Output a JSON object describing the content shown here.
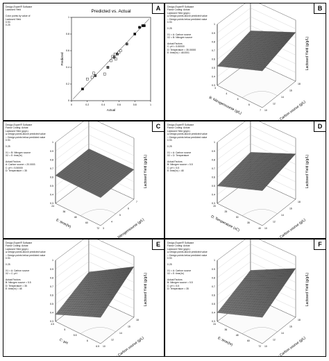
{
  "panels": [
    {
      "letter": "A",
      "info": [
        "Design-Expert® Software",
        "Lactosed Yield",
        "",
        "Color points by value of",
        "Lactosed Yield",
        "0.93",
        "0.25"
      ],
      "ytitle": "Lactosed Yield (g/g/L)"
    },
    {
      "letter": "B",
      "info": [
        "Design-Expert® Software",
        "Factor Coding: Actual",
        "Lactosed Yield (g/g/L)",
        "  ● Design points above predicted value",
        "  ○ Design points below predicted value",
        "0.93",
        "",
        "0.25",
        "",
        "X1 = A: Carbon source",
        "X2 = B: Nitrogen source",
        "",
        "Actual Factors",
        "C: pH = 5.50000",
        "D: Temperature = 35.00000",
        "E: time(hr) = 48.0001"
      ],
      "ytitle": "Lactosed Yield (g/g/L)"
    },
    {
      "letter": "C",
      "info": [
        "Design-Expert® Software",
        "Factor Coding: Actual",
        "Lactosed Yield (g/g/L)",
        "  ● Design points above predicted value",
        "  ○ Design points below predicted value",
        "0.93",
        "",
        "0.25",
        "",
        "X1 = B: Nitrogen source",
        "X2 = E: time(hr)",
        "",
        "Actual Factors",
        "A: Carbon source = 20.0003",
        "C: pH = 5.50000",
        "D: Temperature = 35"
      ],
      "ytitle": "Lactosed Yield (g/g/L)"
    },
    {
      "letter": "D",
      "info": [
        "Design-Expert® Software",
        "Factor Coding: Actual",
        "Lactosed Yield (g/g/L)",
        "  ● Design points above predicted value",
        "  ○ Design points below predicted value",
        "0.93",
        "",
        "0.25",
        "",
        "X1 = A: Carbon source",
        "X2 = D: Temperature",
        "",
        "Actual Factors",
        "B: Nitrogen source = 5.5",
        "C: pH = 5.5",
        "E: time(hr) = 48"
      ],
      "ytitle": "Lactosed Yield (g/g/L)"
    },
    {
      "letter": "E",
      "info": [
        "Design-Expert® Software",
        "Factor Coding: Actual",
        "Lactosed Yield (g/g/L)",
        "  ● Design points above predicted value",
        "  ○ Design points below predicted value",
        "0.93",
        "",
        "0.25",
        "",
        "X1 = A: Carbon source",
        "X2 = C: pH",
        "",
        "Actual Factors",
        "B: Nitrogen source = 5.5",
        "D: Temperature = 35",
        "E: time(hr) = 48"
      ],
      "ytitle": "Lactosed Yield (g/g/L)"
    },
    {
      "letter": "F",
      "info": [
        "Design-Expert® Software",
        "Factor Coding: Actual",
        "Lactosed Yield (g/g/L)",
        "  ● Design points above predicted value",
        "  ○ Design points below predicted value",
        "0.93",
        "",
        "0.25",
        "",
        "X1 = A: Carbon source",
        "X2 = E: time(hr)",
        "",
        "Actual Factors",
        "B: Nitrogen source = 5.5",
        "C: pH = 5.5",
        "D: Temperature = 35"
      ],
      "ytitle": "Lactosed Yield (g/g/L)"
    }
  ],
  "chart_data": [
    {
      "type": "scatter",
      "title": "Predicted vs. Actual",
      "xlabel": "Actual",
      "ylabel": "Predicted",
      "xlim": [
        0,
        1
      ],
      "ylim": [
        0,
        1
      ],
      "xticks": [
        "0",
        "0.2",
        "0.4",
        "0.6",
        "0.8",
        "1"
      ],
      "yticks": [
        "0",
        "0.2",
        "0.4",
        "0.6",
        "0.8",
        "1"
      ],
      "reference_line": true,
      "points": [
        {
          "x": 0.14,
          "y": 0.14
        },
        {
          "x": 0.2,
          "y": 0.26
        },
        {
          "x": 0.26,
          "y": 0.28
        },
        {
          "x": 0.3,
          "y": 0.3
        },
        {
          "x": 0.28,
          "y": 0.33
        },
        {
          "x": 0.42,
          "y": 0.32
        },
        {
          "x": 0.46,
          "y": 0.4
        },
        {
          "x": 0.5,
          "y": 0.48
        },
        {
          "x": 0.52,
          "y": 0.53
        },
        {
          "x": 0.54,
          "y": 0.52
        },
        {
          "x": 0.55,
          "y": 0.56
        },
        {
          "x": 0.56,
          "y": 0.5
        },
        {
          "x": 0.58,
          "y": 0.56
        },
        {
          "x": 0.6,
          "y": 0.58
        },
        {
          "x": 0.62,
          "y": 0.6
        },
        {
          "x": 0.7,
          "y": 0.68
        },
        {
          "x": 0.8,
          "y": 0.8
        },
        {
          "x": 0.86,
          "y": 0.88
        },
        {
          "x": 0.9,
          "y": 0.9
        },
        {
          "x": 0.92,
          "y": 0.9
        }
      ]
    },
    {
      "type": "surface",
      "zlabel": "Lactosed Yield (g/g/L)",
      "x1label": "A: Carbon sourse (g/L)",
      "x2label": "B: Nitrogensourse (g/L)",
      "x1ticks": [
        "10",
        "12",
        "14",
        "16",
        "18"
      ],
      "x2ticks": [
        "3",
        "4",
        "5",
        "6",
        "7"
      ],
      "zticks": [
        "0.3",
        "0.4",
        "0.5",
        "0.6",
        "0.7",
        "0.8",
        "0.9",
        "1"
      ],
      "zlim": [
        0.3,
        1
      ],
      "corner_values": [
        0.52,
        0.72,
        0.86,
        0.64
      ]
    },
    {
      "type": "surface",
      "zlabel": "Lactosed Yield (g/g/L)",
      "x1label": "B: Nitrogensourse (g/L)",
      "x2label": "E: time(hr)",
      "x1ticks": [
        "3",
        "4",
        "5",
        "6",
        "7"
      ],
      "x2ticks": [
        "24",
        "36",
        "48",
        "60",
        "72"
      ],
      "zticks": [
        "0.3",
        "0.4",
        "0.5",
        "0.6",
        "0.7",
        "0.8",
        "0.9",
        "1"
      ],
      "zlim": [
        0.3,
        1
      ],
      "corner_values": [
        0.62,
        0.62,
        0.64,
        0.64
      ]
    },
    {
      "type": "surface",
      "zlabel": "Lactosed Yield (g/g/L)",
      "x1label": "A: Carbon sourse (g/L)",
      "x2label": "D: Temperature (oC)",
      "x1ticks": [
        "10",
        "12",
        "14",
        "16",
        "18"
      ],
      "x2ticks": [
        "20",
        "25",
        "30",
        "35",
        "40"
      ],
      "zticks": [
        "0.3",
        "0.4",
        "0.5",
        "0.6",
        "0.7",
        "0.8",
        "0.9",
        "1"
      ],
      "zlim": [
        0.3,
        1
      ],
      "corner_values": [
        0.5,
        0.7,
        0.82,
        0.6
      ]
    },
    {
      "type": "surface",
      "zlabel": "Lactosed Yield (g/g/L)",
      "x1label": "A: Carbon sourse (g/L)",
      "x2label": "C: pH",
      "x1ticks": [
        "10",
        "12",
        "14",
        "16",
        "18"
      ],
      "x2ticks": [
        "4.5",
        "5",
        "5.5",
        "6",
        "6.5"
      ],
      "zticks": [
        "0.3",
        "0.4",
        "0.5",
        "0.6",
        "0.7",
        "0.8",
        "0.9",
        "1"
      ],
      "zlim": [
        0.3,
        1
      ],
      "corner_values": [
        0.38,
        0.6,
        0.88,
        0.58
      ]
    },
    {
      "type": "surface",
      "zlabel": "Lactosed Yield (g/g/L)",
      "x1label": "A: Carbon sourse (g/L)",
      "x2label": "E: time(hr)",
      "x1ticks": [
        "10",
        "12",
        "14",
        "16",
        "18"
      ],
      "x2ticks": [
        "24",
        "36",
        "48",
        "60",
        "72"
      ],
      "zticks": [
        "0.3",
        "0.4",
        "0.5",
        "0.6",
        "0.7",
        "0.8",
        "0.9",
        "1"
      ],
      "zlim": [
        0.3,
        1
      ],
      "corner_values": [
        0.4,
        0.6,
        0.86,
        0.6
      ]
    }
  ]
}
